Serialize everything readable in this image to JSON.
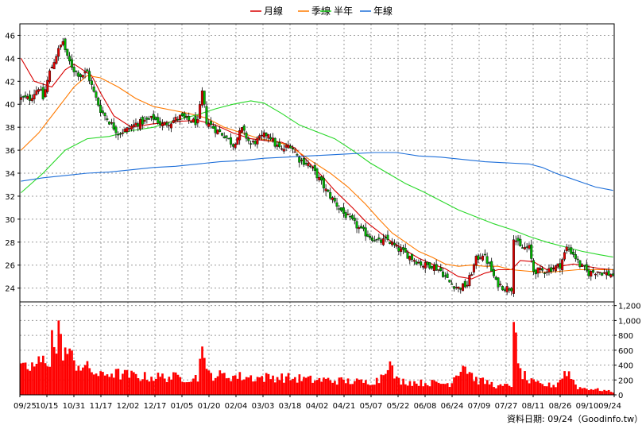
{
  "chart_data": {
    "type": "candlestick+volume",
    "legend": [
      {
        "name": "月線",
        "color": "#d80000"
      },
      {
        "name": "季線",
        "color": "#ff7a00"
      },
      {
        "name": "半年",
        "color": "#28d828"
      },
      {
        "name": "年線",
        "color": "#1e6fd9"
      }
    ],
    "x_tick_labels": [
      "09/25",
      "10/15",
      "10/31",
      "11/17",
      "12/02",
      "12/17",
      "01/05",
      "01/20",
      "02/04",
      "03/03",
      "03/18",
      "04/02",
      "04/21",
      "05/07",
      "05/22",
      "06/08",
      "06/24",
      "07/09",
      "07/27",
      "08/11",
      "08/26",
      "09/10",
      "09/24"
    ],
    "price_axis": {
      "ticks": [
        24,
        26,
        28,
        30,
        32,
        34,
        36,
        38,
        40,
        42,
        44,
        46
      ],
      "ylim": [
        22.8,
        47
      ]
    },
    "volume_axis": {
      "ticks": [
        0,
        200,
        400,
        600,
        800,
        1000,
        1200
      ],
      "tick_labels": [
        "0",
        "200",
        "400",
        "600",
        "800",
        "1,000",
        "1,200"
      ],
      "ylim": [
        0,
        1250
      ]
    },
    "source_label": "資料日期: 09/24（Goodinfo.tw）",
    "close_anchors": [
      [
        0,
        40.5
      ],
      [
        4,
        40.5
      ],
      [
        8,
        41.5
      ],
      [
        10,
        40.5
      ],
      [
        13,
        42.8
      ],
      [
        16,
        44.3
      ],
      [
        19,
        45.5
      ],
      [
        21,
        44.0
      ],
      [
        24,
        43.0
      ],
      [
        27,
        42.5
      ],
      [
        30,
        42.8
      ],
      [
        33,
        41.0
      ],
      [
        36,
        39.5
      ],
      [
        40,
        38.5
      ],
      [
        44,
        37.5
      ],
      [
        48,
        37.8
      ],
      [
        52,
        38.3
      ],
      [
        56,
        38.5
      ],
      [
        60,
        38.8
      ],
      [
        64,
        38.2
      ],
      [
        68,
        38.5
      ],
      [
        72,
        38.9
      ],
      [
        76,
        38.6
      ],
      [
        80,
        38.4
      ],
      [
        82,
        41.0
      ],
      [
        84,
        38.5
      ],
      [
        88,
        37.8
      ],
      [
        92,
        37.3
      ],
      [
        96,
        36.5
      ],
      [
        100,
        37.8
      ],
      [
        104,
        36.5
      ],
      [
        108,
        37.0
      ],
      [
        112,
        37.5
      ],
      [
        115,
        36.5
      ],
      [
        118,
        36.0
      ],
      [
        122,
        36.5
      ],
      [
        126,
        35.2
      ],
      [
        130,
        34.8
      ],
      [
        134,
        33.8
      ],
      [
        138,
        32.5
      ],
      [
        142,
        31.5
      ],
      [
        146,
        30.5
      ],
      [
        150,
        29.8
      ],
      [
        154,
        29.0
      ],
      [
        158,
        28.5
      ],
      [
        162,
        28.0
      ],
      [
        166,
        28.2
      ],
      [
        170,
        27.5
      ],
      [
        174,
        27.0
      ],
      [
        178,
        26.5
      ],
      [
        182,
        26.0
      ],
      [
        186,
        26.0
      ],
      [
        190,
        25.5
      ],
      [
        194,
        24.5
      ],
      [
        198,
        24.0
      ],
      [
        202,
        24.3
      ],
      [
        206,
        26.5
      ],
      [
        209,
        27.0
      ],
      [
        212,
        26.0
      ],
      [
        215,
        24.5
      ],
      [
        219,
        24.0
      ],
      [
        222,
        24.0
      ],
      [
        223,
        28.5
      ],
      [
        226,
        27.5
      ],
      [
        230,
        27.5
      ],
      [
        232,
        25.5
      ],
      [
        236,
        25.5
      ],
      [
        240,
        25.7
      ],
      [
        244,
        26.0
      ],
      [
        247,
        27.5
      ],
      [
        250,
        27.0
      ],
      [
        253,
        26.0
      ],
      [
        257,
        25.3
      ],
      [
        261,
        25.5
      ],
      [
        264,
        25.3
      ],
      [
        267,
        25.2
      ]
    ],
    "volume_anchors": [
      [
        0,
        330
      ],
      [
        5,
        380
      ],
      [
        10,
        450
      ],
      [
        14,
        500
      ],
      [
        17,
        700
      ],
      [
        20,
        600
      ],
      [
        24,
        450
      ],
      [
        28,
        380
      ],
      [
        32,
        330
      ],
      [
        36,
        250
      ],
      [
        40,
        300
      ],
      [
        44,
        280
      ],
      [
        50,
        260
      ],
      [
        56,
        240
      ],
      [
        62,
        240
      ],
      [
        68,
        240
      ],
      [
        74,
        230
      ],
      [
        80,
        230
      ],
      [
        82,
        650
      ],
      [
        84,
        280
      ],
      [
        90,
        260
      ],
      [
        96,
        250
      ],
      [
        102,
        240
      ],
      [
        108,
        230
      ],
      [
        114,
        240
      ],
      [
        120,
        230
      ],
      [
        126,
        220
      ],
      [
        132,
        200
      ],
      [
        138,
        200
      ],
      [
        144,
        190
      ],
      [
        150,
        180
      ],
      [
        156,
        170
      ],
      [
        162,
        200
      ],
      [
        166,
        460
      ],
      [
        170,
        200
      ],
      [
        176,
        170
      ],
      [
        182,
        160
      ],
      [
        188,
        160
      ],
      [
        194,
        150
      ],
      [
        200,
        420
      ],
      [
        206,
        200
      ],
      [
        212,
        160
      ],
      [
        216,
        110
      ],
      [
        222,
        130
      ],
      [
        223,
        980
      ],
      [
        225,
        350
      ],
      [
        230,
        180
      ],
      [
        236,
        130
      ],
      [
        242,
        130
      ],
      [
        247,
        330
      ],
      [
        252,
        100
      ],
      [
        258,
        80
      ],
      [
        264,
        60
      ],
      [
        268,
        40
      ]
    ],
    "ma_lines": {
      "月線": [
        [
          0,
          44.0
        ],
        [
          6,
          42.0
        ],
        [
          14,
          41.5
        ],
        [
          20,
          43.0
        ],
        [
          24,
          43.5
        ],
        [
          28,
          43.0
        ],
        [
          32,
          42.5
        ],
        [
          36,
          41.0
        ],
        [
          42,
          39.0
        ],
        [
          50,
          38.0
        ],
        [
          60,
          38.3
        ],
        [
          70,
          38.5
        ],
        [
          80,
          38.6
        ],
        [
          88,
          38.2
        ],
        [
          96,
          37.5
        ],
        [
          104,
          37.0
        ],
        [
          112,
          36.8
        ],
        [
          118,
          36.7
        ],
        [
          124,
          36.2
        ],
        [
          130,
          35.0
        ],
        [
          136,
          33.8
        ],
        [
          142,
          32.5
        ],
        [
          150,
          31.0
        ],
        [
          156,
          29.8
        ],
        [
          162,
          28.9
        ],
        [
          168,
          28.0
        ],
        [
          174,
          27.3
        ],
        [
          180,
          26.6
        ],
        [
          186,
          26.1
        ],
        [
          192,
          25.7
        ],
        [
          198,
          25.0
        ],
        [
          204,
          24.8
        ],
        [
          210,
          25.3
        ],
        [
          216,
          25.6
        ],
        [
          222,
          25.6
        ],
        [
          226,
          26.4
        ],
        [
          232,
          26.3
        ],
        [
          238,
          25.6
        ],
        [
          244,
          25.9
        ],
        [
          250,
          26.1
        ],
        [
          256,
          25.9
        ],
        [
          262,
          25.7
        ],
        [
          268,
          25.6
        ]
      ],
      "季線": [
        [
          0,
          36.0
        ],
        [
          8,
          37.5
        ],
        [
          16,
          39.5
        ],
        [
          24,
          41.5
        ],
        [
          30,
          42.5
        ],
        [
          36,
          42.3
        ],
        [
          44,
          41.5
        ],
        [
          52,
          40.5
        ],
        [
          60,
          39.8
        ],
        [
          68,
          39.5
        ],
        [
          76,
          39.2
        ],
        [
          84,
          38.8
        ],
        [
          92,
          38.0
        ],
        [
          100,
          37.5
        ],
        [
          108,
          37.0
        ],
        [
          114,
          36.8
        ],
        [
          120,
          36.5
        ],
        [
          126,
          35.8
        ],
        [
          132,
          35.0
        ],
        [
          140,
          34.0
        ],
        [
          148,
          32.8
        ],
        [
          156,
          31.3
        ],
        [
          162,
          30.0
        ],
        [
          168,
          28.8
        ],
        [
          174,
          28.0
        ],
        [
          180,
          27.2
        ],
        [
          186,
          26.7
        ],
        [
          192,
          26.1
        ],
        [
          198,
          25.9
        ],
        [
          204,
          26.0
        ],
        [
          210,
          25.9
        ],
        [
          216,
          25.9
        ],
        [
          222,
          25.6
        ],
        [
          228,
          25.5
        ],
        [
          234,
          25.4
        ],
        [
          240,
          25.4
        ],
        [
          246,
          25.5
        ],
        [
          252,
          25.6
        ],
        [
          258,
          25.6
        ],
        [
          264,
          25.6
        ],
        [
          268,
          25.6
        ]
      ],
      "半年": [
        [
          0,
          32.3
        ],
        [
          10,
          34.0
        ],
        [
          20,
          36.0
        ],
        [
          30,
          37.0
        ],
        [
          40,
          37.2
        ],
        [
          50,
          37.7
        ],
        [
          60,
          38.0
        ],
        [
          70,
          38.6
        ],
        [
          80,
          39.1
        ],
        [
          88,
          39.6
        ],
        [
          96,
          40.0
        ],
        [
          104,
          40.3
        ],
        [
          110,
          40.1
        ],
        [
          118,
          39.2
        ],
        [
          126,
          38.2
        ],
        [
          134,
          37.6
        ],
        [
          142,
          37.0
        ],
        [
          150,
          36.0
        ],
        [
          158,
          34.9
        ],
        [
          166,
          34.0
        ],
        [
          174,
          33.1
        ],
        [
          182,
          32.4
        ],
        [
          190,
          31.6
        ],
        [
          198,
          30.8
        ],
        [
          206,
          30.2
        ],
        [
          214,
          29.6
        ],
        [
          222,
          29.1
        ],
        [
          230,
          28.5
        ],
        [
          238,
          28.0
        ],
        [
          246,
          27.6
        ],
        [
          254,
          27.2
        ],
        [
          262,
          26.9
        ],
        [
          268,
          26.7
        ]
      ],
      "年線": [
        [
          0,
          33.3
        ],
        [
          10,
          33.6
        ],
        [
          20,
          33.8
        ],
        [
          30,
          34.0
        ],
        [
          40,
          34.1
        ],
        [
          50,
          34.3
        ],
        [
          60,
          34.5
        ],
        [
          70,
          34.6
        ],
        [
          80,
          34.8
        ],
        [
          90,
          35.0
        ],
        [
          100,
          35.1
        ],
        [
          110,
          35.3
        ],
        [
          120,
          35.4
        ],
        [
          130,
          35.5
        ],
        [
          140,
          35.6
        ],
        [
          150,
          35.7
        ],
        [
          160,
          35.8
        ],
        [
          170,
          35.8
        ],
        [
          180,
          35.5
        ],
        [
          190,
          35.4
        ],
        [
          200,
          35.2
        ],
        [
          210,
          35.0
        ],
        [
          220,
          34.9
        ],
        [
          230,
          34.8
        ],
        [
          236,
          34.5
        ],
        [
          242,
          34.0
        ],
        [
          248,
          33.6
        ],
        [
          254,
          33.2
        ],
        [
          260,
          32.8
        ],
        [
          268,
          32.5
        ]
      ]
    }
  }
}
